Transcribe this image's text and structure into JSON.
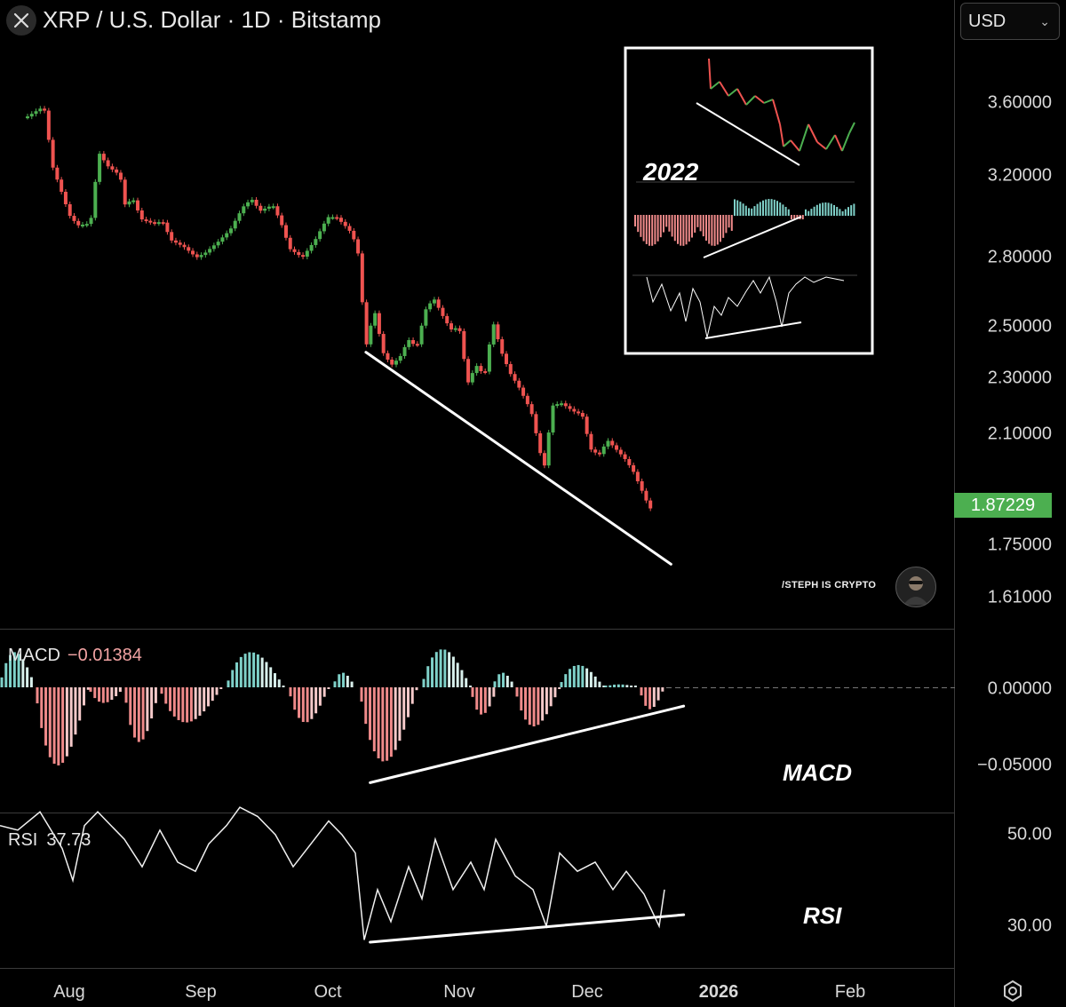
{
  "header": {
    "title": "XRP / U.S. Dollar · 1D · Bitstamp",
    "currency": "USD"
  },
  "price_axis": {
    "labels": [
      "3.60000",
      "3.20000",
      "2.80000",
      "2.50000",
      "2.30000",
      "2.10000",
      "1.75000",
      "1.61000"
    ],
    "last_price": "1.87229"
  },
  "macd": {
    "label": "MACD",
    "value": "−0.01384",
    "axis_labels": [
      "0.00000",
      "−0.05000"
    ],
    "annotation": "MACD"
  },
  "rsi": {
    "label": "RSI",
    "value": "37.73",
    "axis_labels": [
      "50.00",
      "30.00"
    ],
    "annotation": "RSI"
  },
  "time_axis": {
    "labels": [
      "Aug",
      "Sep",
      "Oct",
      "Nov",
      "Dec",
      "2026",
      "Feb"
    ]
  },
  "inset": {
    "year": "2022"
  },
  "credit": "/STEPH IS CRYPTO",
  "colors": {
    "up": "#4caf50",
    "down": "#ef5350",
    "background": "#000000",
    "macd_pos": "#7fd1c9",
    "macd_neg": "#ef8a8a",
    "last_price_bg": "#4caf50"
  },
  "chart_data": {
    "type": "candlestick",
    "symbol": "XRP / U.S. Dollar",
    "interval": "1D",
    "exchange": "Bitstamp",
    "price_scale": "log",
    "close_trace": [
      [
        "2025-07-22",
        3.52
      ],
      [
        "2025-07-26",
        3.58
      ],
      [
        "2025-07-28",
        3.25
      ],
      [
        "2025-08-01",
        3.0
      ],
      [
        "2025-08-03",
        2.95
      ],
      [
        "2025-08-06",
        2.96
      ],
      [
        "2025-08-08",
        3.32
      ],
      [
        "2025-08-10",
        3.25
      ],
      [
        "2025-08-13",
        3.2
      ],
      [
        "2025-08-14",
        3.05
      ],
      [
        "2025-08-16",
        3.08
      ],
      [
        "2025-08-18",
        2.98
      ],
      [
        "2025-08-21",
        2.96
      ],
      [
        "2025-08-23",
        2.97
      ],
      [
        "2025-08-25",
        2.88
      ],
      [
        "2025-08-28",
        2.85
      ],
      [
        "2025-08-31",
        2.8
      ],
      [
        "2025-09-02",
        2.82
      ],
      [
        "2025-09-05",
        2.87
      ],
      [
        "2025-09-08",
        2.93
      ],
      [
        "2025-09-11",
        3.04
      ],
      [
        "2025-09-13",
        3.08
      ],
      [
        "2025-09-15",
        3.02
      ],
      [
        "2025-09-18",
        3.05
      ],
      [
        "2025-09-20",
        2.96
      ],
      [
        "2025-09-22",
        2.84
      ],
      [
        "2025-09-25",
        2.8
      ],
      [
        "2025-09-28",
        2.88
      ],
      [
        "2025-10-01",
        2.99
      ],
      [
        "2025-10-03",
        2.99
      ],
      [
        "2025-10-06",
        2.93
      ],
      [
        "2025-10-08",
        2.85
      ],
      [
        "2025-10-10",
        2.42
      ],
      [
        "2025-10-12",
        2.57
      ],
      [
        "2025-10-14",
        2.4
      ],
      [
        "2025-10-16",
        2.35
      ],
      [
        "2025-10-18",
        2.38
      ],
      [
        "2025-10-20",
        2.45
      ],
      [
        "2025-10-22",
        2.42
      ],
      [
        "2025-10-24",
        2.57
      ],
      [
        "2025-10-26",
        2.62
      ],
      [
        "2025-10-28",
        2.55
      ],
      [
        "2025-10-30",
        2.49
      ],
      [
        "2025-11-01",
        2.5
      ],
      [
        "2025-11-03",
        2.28
      ],
      [
        "2025-11-05",
        2.35
      ],
      [
        "2025-11-07",
        2.31
      ],
      [
        "2025-11-09",
        2.52
      ],
      [
        "2025-11-11",
        2.4
      ],
      [
        "2025-11-13",
        2.32
      ],
      [
        "2025-11-15",
        2.27
      ],
      [
        "2025-11-18",
        2.18
      ],
      [
        "2025-11-21",
        1.98
      ],
      [
        "2025-11-23",
        2.2
      ],
      [
        "2025-11-25",
        2.21
      ],
      [
        "2025-11-28",
        2.18
      ],
      [
        "2025-11-30",
        2.17
      ],
      [
        "2025-12-02",
        2.05
      ],
      [
        "2025-12-04",
        2.03
      ],
      [
        "2025-12-06",
        2.08
      ],
      [
        "2025-12-08",
        2.05
      ],
      [
        "2025-12-10",
        2.02
      ],
      [
        "2025-12-12",
        1.98
      ],
      [
        "2025-12-14",
        1.92
      ],
      [
        "2025-12-16",
        1.86
      ],
      [
        "2025-12-17",
        1.87
      ]
    ],
    "last_price": 1.87229,
    "price_ticks": [
      3.6,
      3.2,
      2.8,
      2.5,
      2.3,
      2.1,
      1.75,
      1.61
    ],
    "trendline_price": {
      "from": [
        "2025-10-10",
        2.4
      ],
      "to": [
        "2025-12-21",
        1.7
      ]
    },
    "macd": {
      "last": -0.01384,
      "ticks": [
        0.0,
        -0.05
      ],
      "trendline": {
        "from": [
          "2025-10-11",
          -0.061
        ],
        "to": [
          "2025-12-24",
          -0.012
        ]
      }
    },
    "rsi": {
      "last": 37.73,
      "ticks": [
        50,
        30
      ],
      "trendline": {
        "from": [
          "2025-10-11",
          26.5
        ],
        "to": [
          "2025-12-24",
          32.5
        ]
      }
    },
    "time_ticks": [
      "Aug",
      "Sep",
      "Oct",
      "Nov",
      "Dec",
      "2026",
      "Feb"
    ],
    "annotations": [
      "MACD",
      "RSI",
      "2022"
    ]
  }
}
